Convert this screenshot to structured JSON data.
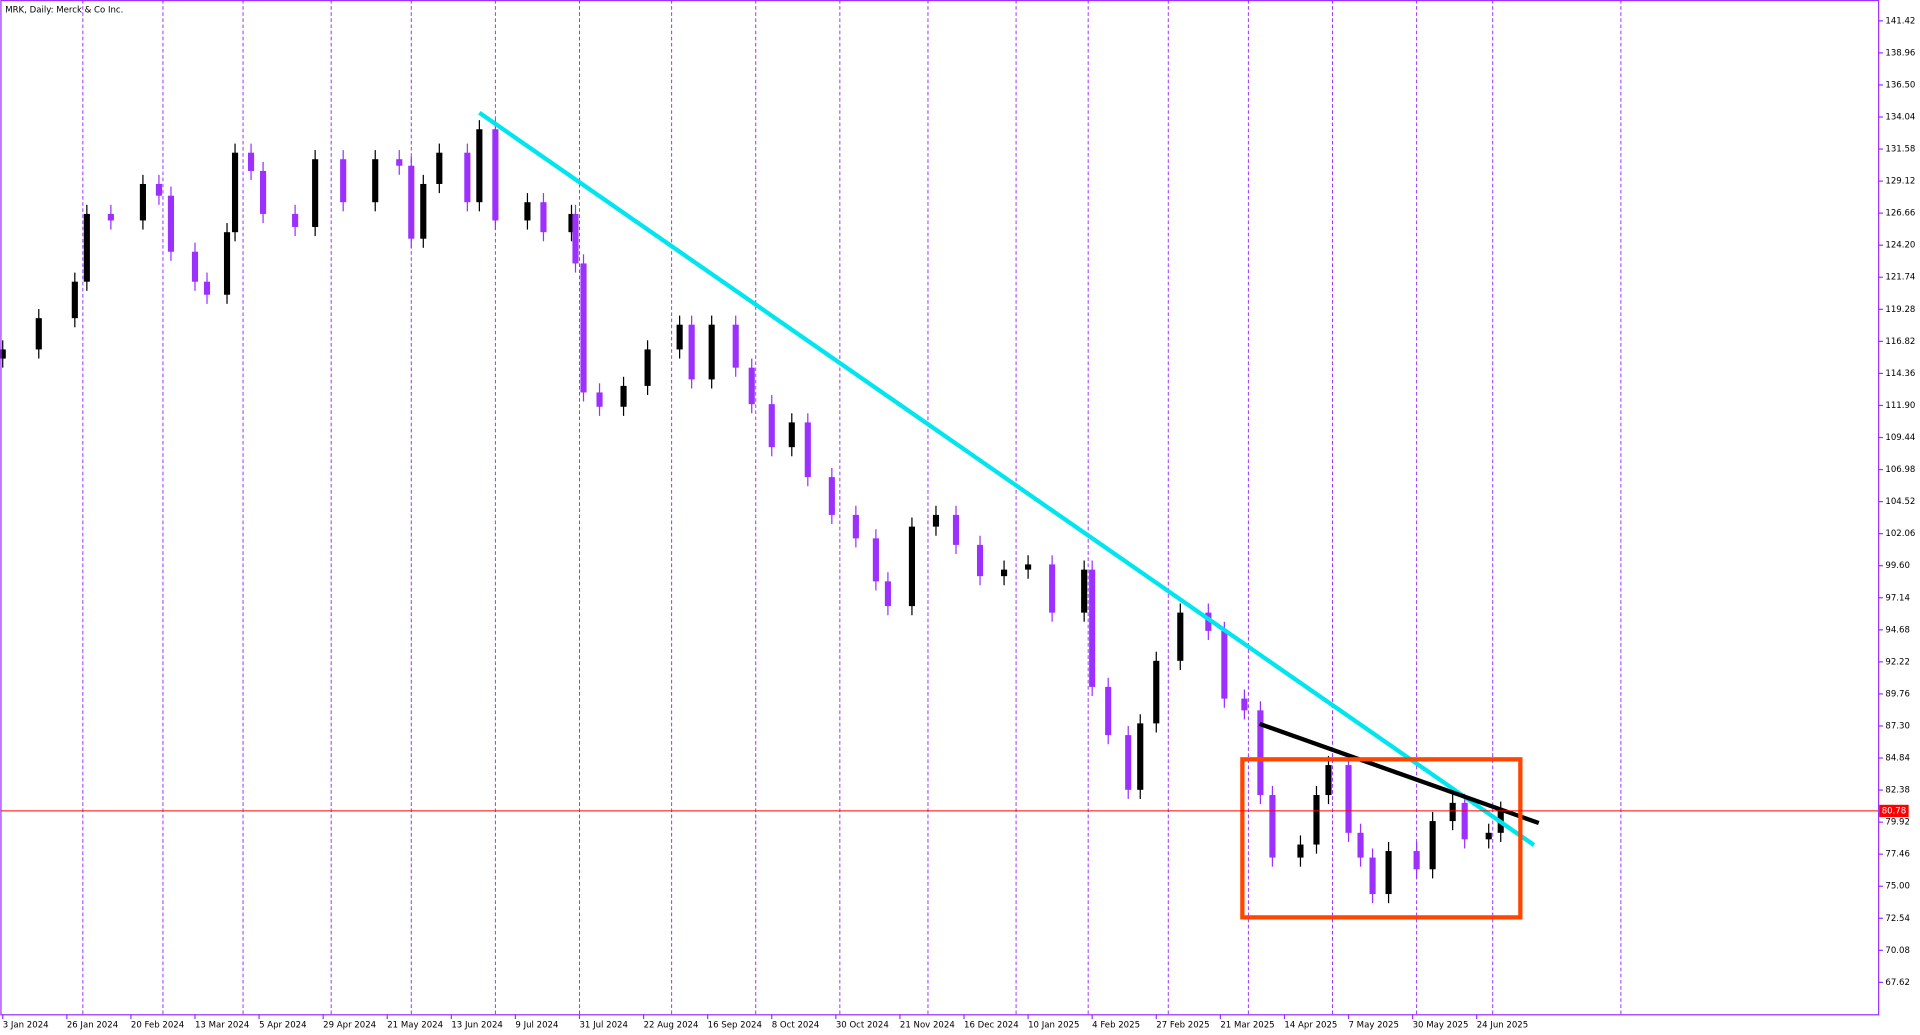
{
  "chart_data": {
    "type": "candlestick",
    "title": "MRK, Daily:  Merck & Co Inc.",
    "bull_color": "#000000",
    "bear_color": "#9b30ff",
    "separator_color": "#9b30ff",
    "series": {
      "x": [
        0,
        9,
        18,
        21,
        27,
        35,
        39,
        42,
        48,
        51,
        56,
        58,
        62,
        65,
        73,
        78,
        85,
        93,
        99,
        102,
        105,
        109,
        116,
        119,
        123,
        131,
        135,
        142,
        143,
        145,
        149,
        155,
        161,
        169,
        172,
        177,
        183,
        187,
        192,
        197,
        201,
        207,
        213,
        218,
        221,
        227,
        233,
        238,
        244,
        250,
        256,
        262,
        270,
        272,
        276,
        281,
        284,
        288,
        294,
        301,
        305,
        310,
        314,
        317,
        324,
        328,
        331,
        336,
        339,
        342,
        346,
        353,
        357,
        362,
        365,
        371,
        374
      ],
      "open": [
        115.5,
        116.2,
        118.6,
        121.4,
        126.6,
        126.1,
        128.9,
        128.0,
        123.7,
        121.4,
        120.4,
        125.2,
        131.3,
        129.9,
        126.6,
        125.6,
        130.8,
        127.5,
        130.8,
        130.3,
        124.7,
        128.9,
        131.3,
        127.5,
        133.1,
        126.1,
        127.5,
        125.2,
        126.6,
        122.8,
        112.9,
        111.8,
        113.4,
        116.2,
        118.1,
        113.9,
        118.1,
        114.8,
        112.0,
        108.7,
        110.6,
        106.4,
        103.5,
        101.7,
        98.4,
        96.5,
        102.6,
        103.5,
        101.2,
        98.8,
        99.3,
        99.7,
        96.0,
        99.3,
        90.3,
        86.6,
        82.4,
        87.5,
        92.3,
        96.0,
        94.6,
        89.4,
        88.5,
        82.0,
        77.2,
        78.2,
        82.0,
        84.3,
        79.1,
        77.2,
        74.4,
        77.7,
        76.3,
        80.0,
        81.4,
        78.6,
        79.1
      ],
      "high": [
        116.9,
        119.3,
        122.1,
        127.3,
        127.3,
        129.6,
        129.6,
        128.7,
        124.4,
        122.1,
        125.9,
        132.0,
        132.0,
        130.6,
        127.3,
        131.5,
        131.5,
        131.5,
        131.5,
        131.0,
        129.6,
        132.0,
        132.0,
        133.8,
        133.8,
        128.2,
        128.2,
        127.3,
        127.3,
        123.5,
        113.6,
        114.1,
        116.9,
        118.8,
        118.8,
        118.8,
        118.8,
        115.5,
        112.7,
        111.3,
        111.3,
        107.1,
        104.2,
        102.4,
        99.1,
        103.3,
        104.2,
        104.2,
        101.9,
        100.0,
        100.4,
        100.4,
        100.0,
        100.0,
        91.0,
        87.3,
        88.2,
        93.0,
        96.7,
        96.7,
        95.3,
        90.1,
        89.2,
        82.7,
        78.9,
        82.7,
        85.0,
        85.0,
        79.8,
        77.9,
        78.4,
        78.4,
        80.7,
        82.1,
        82.1,
        79.8,
        81.5
      ],
      "low": [
        114.8,
        115.5,
        117.9,
        120.7,
        125.4,
        125.4,
        127.3,
        123.0,
        120.7,
        119.7,
        119.7,
        124.5,
        129.2,
        125.9,
        124.9,
        124.9,
        126.8,
        126.8,
        129.6,
        124.0,
        124.0,
        128.2,
        126.8,
        126.8,
        125.4,
        125.4,
        124.5,
        124.5,
        122.1,
        112.2,
        111.1,
        111.1,
        112.7,
        115.5,
        113.2,
        113.2,
        114.1,
        111.3,
        108.0,
        108.0,
        105.7,
        102.8,
        101.0,
        97.7,
        95.8,
        95.8,
        101.9,
        100.5,
        98.1,
        98.1,
        98.6,
        95.3,
        95.3,
        89.6,
        85.9,
        81.7,
        81.7,
        86.8,
        91.6,
        93.9,
        88.7,
        87.8,
        81.3,
        76.5,
        76.5,
        77.5,
        81.3,
        78.4,
        76.5,
        73.7,
        73.7,
        75.6,
        75.6,
        79.3,
        77.9,
        77.9,
        78.4
      ],
      "close": [
        116.2,
        118.6,
        121.4,
        126.6,
        126.1,
        128.9,
        128.0,
        123.7,
        121.4,
        120.4,
        125.2,
        131.3,
        129.9,
        126.6,
        125.6,
        130.8,
        127.5,
        130.8,
        130.3,
        124.7,
        128.9,
        131.3,
        127.5,
        133.1,
        126.1,
        127.5,
        125.2,
        126.6,
        122.8,
        112.9,
        111.8,
        113.4,
        116.2,
        118.1,
        113.9,
        118.1,
        114.8,
        112.0,
        108.7,
        110.6,
        106.4,
        103.5,
        101.7,
        98.4,
        96.5,
        102.6,
        103.5,
        101.2,
        98.8,
        99.3,
        99.7,
        96.0,
        99.3,
        90.3,
        86.6,
        82.4,
        87.5,
        92.3,
        96.0,
        94.6,
        89.4,
        88.5,
        82.0,
        77.2,
        78.2,
        82.0,
        84.3,
        79.1,
        77.2,
        74.4,
        77.7,
        76.3,
        80.0,
        81.4,
        78.6,
        79.1,
        80.8
      ]
    },
    "xlim": [
      -0.6,
      468.2
    ],
    "ylim": [
      65.18,
      143.02
    ],
    "xticks": [
      {
        "value": 0,
        "label": "3 Jan 2024"
      },
      {
        "value": 16,
        "label": "26 Jan 2024"
      },
      {
        "value": 32,
        "label": "20 Feb 2024"
      },
      {
        "value": 48,
        "label": "13 Mar 2024"
      },
      {
        "value": 64,
        "label": "5 Apr 2024"
      },
      {
        "value": 80,
        "label": "29 Apr 2024"
      },
      {
        "value": 96,
        "label": "21 May 2024"
      },
      {
        "value": 112,
        "label": "13 Jun 2024"
      },
      {
        "value": 128,
        "label": "9 Jul 2024"
      },
      {
        "value": 144,
        "label": "31 Jul 2024"
      },
      {
        "value": 160,
        "label": "22 Aug 2024"
      },
      {
        "value": 176,
        "label": "16 Sep 2024"
      },
      {
        "value": 192,
        "label": "8 Oct 2024"
      },
      {
        "value": 208,
        "label": "30 Oct 2024"
      },
      {
        "value": 224,
        "label": "21 Nov 2024"
      },
      {
        "value": 240,
        "label": "16 Dec 2024"
      },
      {
        "value": 256,
        "label": "10 Jan 2025"
      },
      {
        "value": 272,
        "label": "4 Feb 2025"
      },
      {
        "value": 288,
        "label": "27 Feb 2025"
      },
      {
        "value": 304,
        "label": "21 Mar 2025"
      },
      {
        "value": 320,
        "label": "14 Apr 2025"
      },
      {
        "value": 336,
        "label": "7 May 2025"
      },
      {
        "value": 352,
        "label": "30 May 2025"
      },
      {
        "value": 368,
        "label": "24 Jun 2025"
      }
    ],
    "yticks": [
      67.62,
      70.08,
      72.54,
      {
        "value": 75,
        "label": "75.00"
      },
      77.46,
      79.92,
      82.38,
      84.84,
      {
        "value": 87.3,
        "label": "87.30"
      },
      89.76,
      92.22,
      94.68,
      97.14,
      {
        "value": 99.6,
        "label": "99.60"
      },
      102.06,
      104.52,
      106.98,
      109.44,
      {
        "value": 111.9,
        "label": "111.90"
      },
      114.36,
      116.82,
      119.28,
      121.74,
      {
        "value": 124.2,
        "label": "124.20"
      },
      126.66,
      129.12,
      131.58,
      134.04,
      {
        "value": 136.5,
        "label": "136.50"
      },
      138.96,
      141.42
    ],
    "separators": [
      20,
      40,
      60,
      82,
      102,
      123,
      144,
      167,
      188,
      209,
      231,
      253,
      271,
      291,
      311,
      332,
      353,
      372,
      404
    ],
    "trendlines": [
      {
        "color": "#00e5ee",
        "x": [
          119.0,
          382.3
        ],
        "y": [
          134.37,
          78.16
        ]
      },
      {
        "color": "#000000",
        "x": [
          313.8,
          383.5
        ],
        "y": [
          87.46,
          79.85
        ]
      }
    ],
    "rectangle": {
      "color": "#ff4500",
      "x": [
        309.5,
        378.9
      ],
      "y": [
        84.74,
        72.61
      ]
    },
    "current_price": {
      "value": 80.78,
      "color": "#ff0000"
    }
  }
}
